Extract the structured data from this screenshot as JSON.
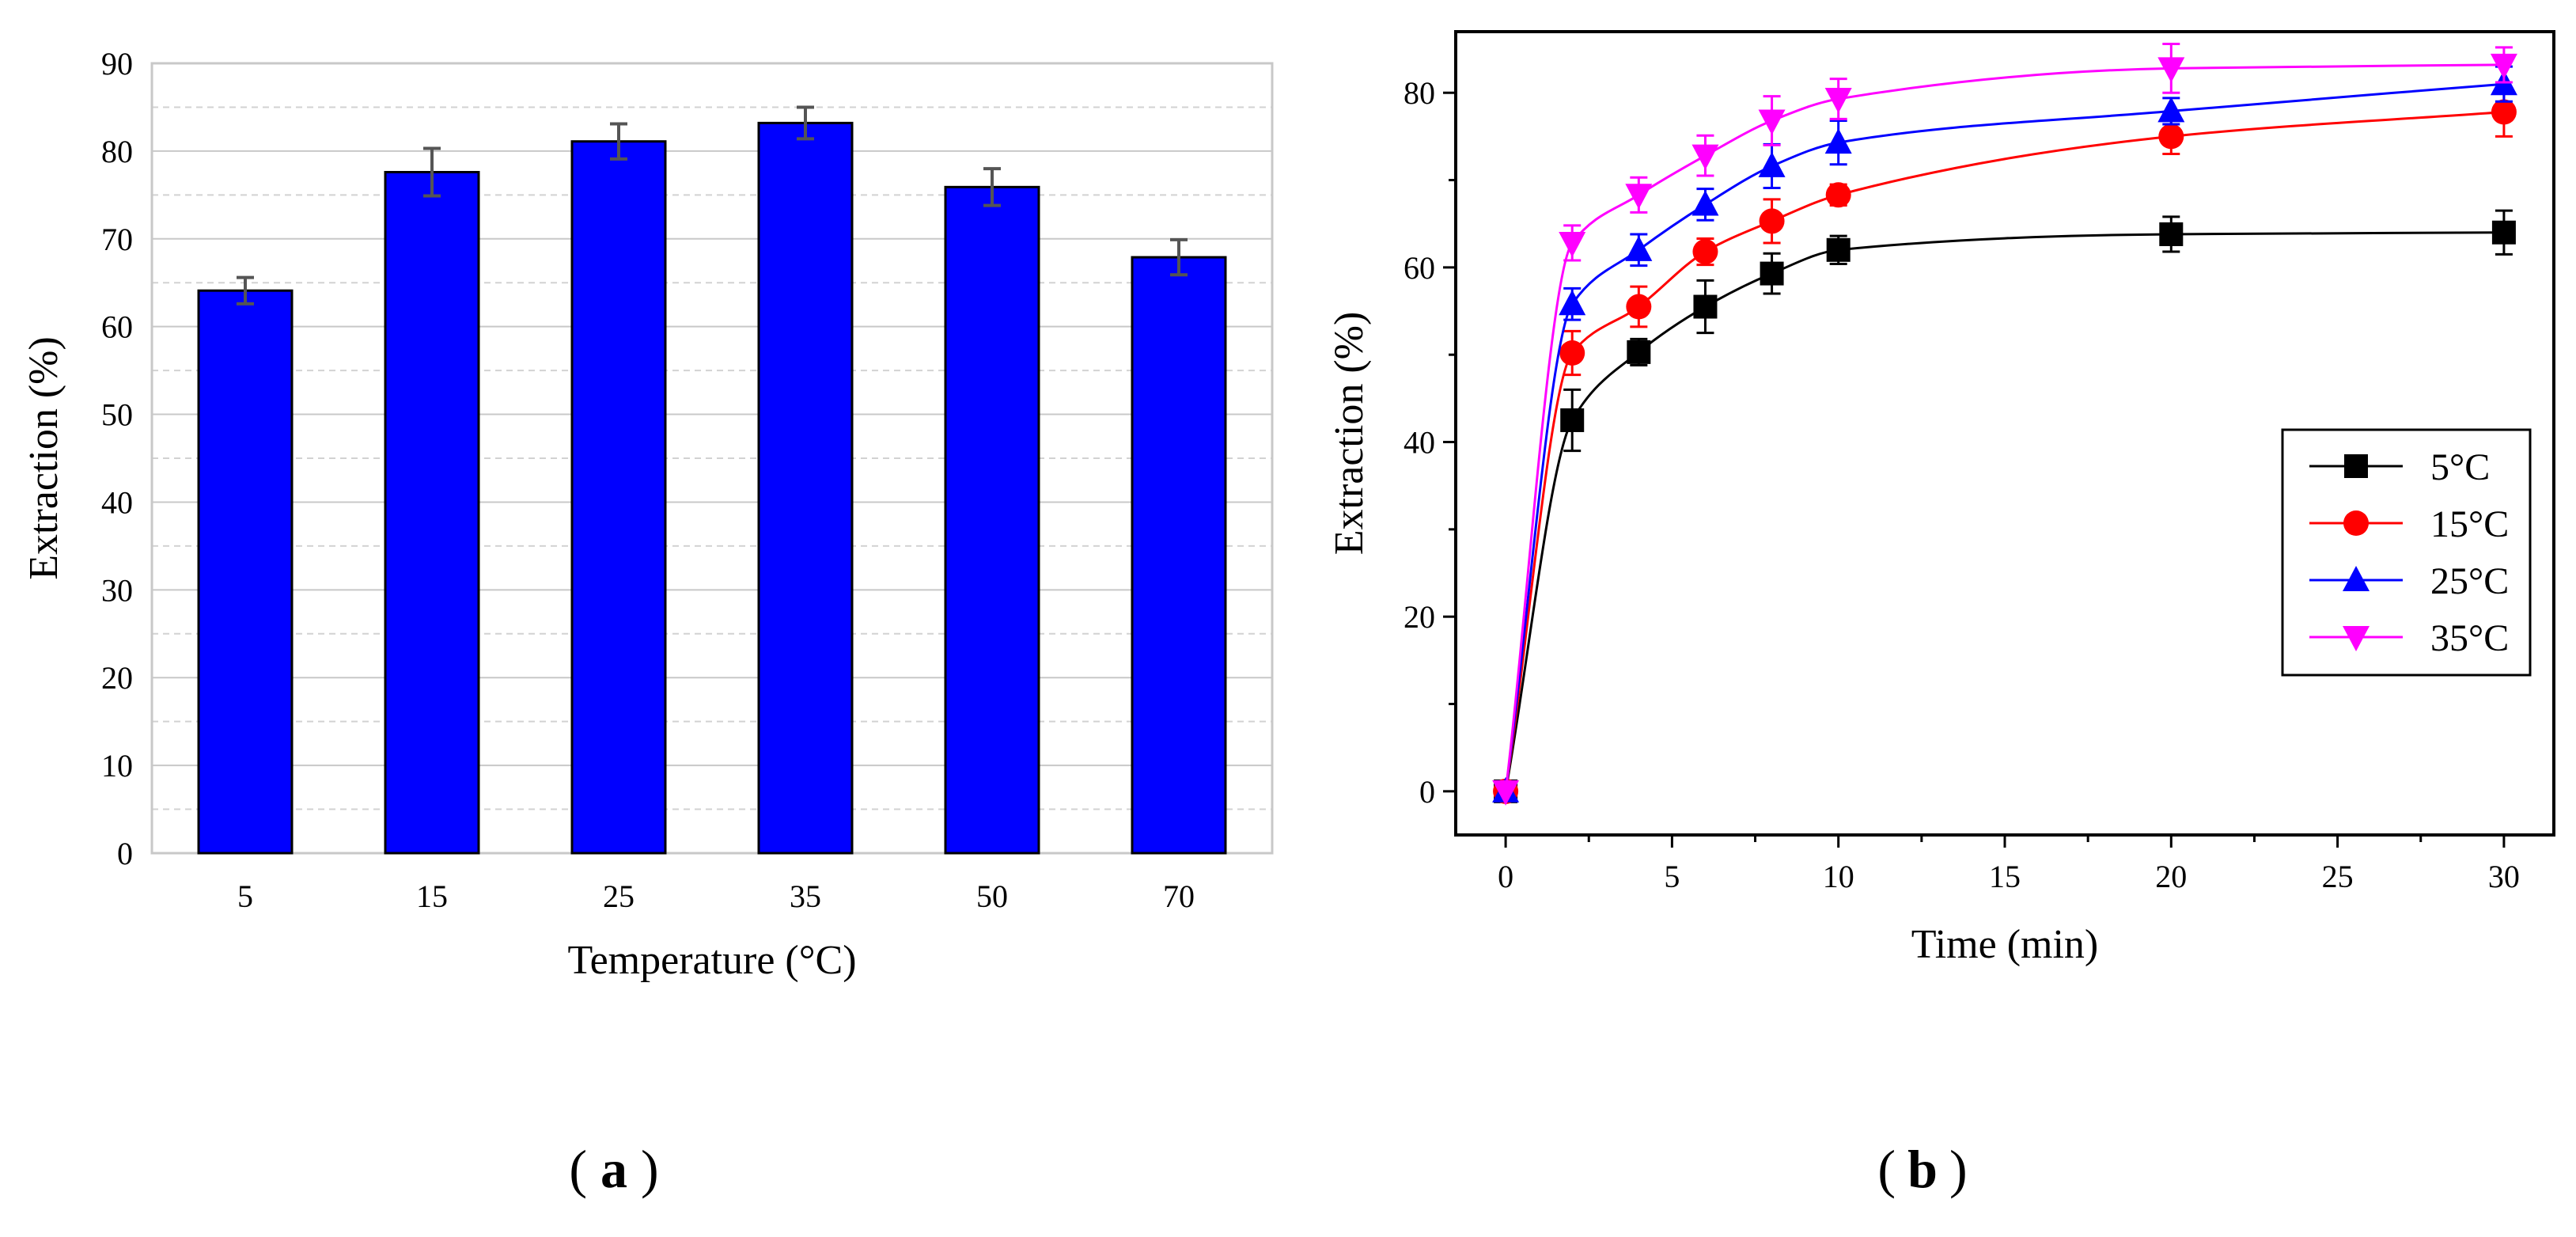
{
  "chart_data": [
    {
      "panel": "a",
      "type": "bar",
      "categories": [
        "5",
        "15",
        "25",
        "35",
        "50",
        "70"
      ],
      "values": [
        64.1,
        77.6,
        81.1,
        83.2,
        75.9,
        67.9
      ],
      "errors": [
        1.5,
        2.7,
        2.0,
        1.8,
        2.1,
        2.0
      ],
      "xlabel": "Temperature (°C)",
      "ylabel": "Extraction (%)",
      "ylim": [
        0,
        90
      ],
      "yticks": [
        0,
        10,
        20,
        30,
        40,
        50,
        60,
        70,
        80,
        90
      ],
      "grid": true,
      "bar_color": "#0000FF",
      "panel_label": "a"
    },
    {
      "panel": "b",
      "type": "line",
      "xlabel": "Time (min)",
      "ylabel": "Extraction (%)",
      "xlim": [
        -1.5,
        31.5
      ],
      "ylim": [
        -5,
        87
      ],
      "xticks": [
        0,
        5,
        10,
        15,
        20,
        25,
        30
      ],
      "yticks": [
        0,
        20,
        40,
        60,
        80
      ],
      "x": [
        0,
        2,
        4,
        6,
        8,
        10,
        20,
        30
      ],
      "legend_position": "right",
      "series": [
        {
          "name": "5°C",
          "color": "#000000",
          "marker": "square",
          "values": [
            0,
            42.5,
            50.3,
            55.5,
            59.3,
            62.0,
            63.8,
            64.0
          ],
          "errors": [
            0,
            3.5,
            1.5,
            3.0,
            2.3,
            1.6,
            2.0,
            2.5
          ]
        },
        {
          "name": "15°C",
          "color": "#FF0000",
          "marker": "circle",
          "values": [
            0,
            50.2,
            55.5,
            61.8,
            65.3,
            68.3,
            75.0,
            77.8
          ],
          "errors": [
            0,
            2.5,
            2.3,
            1.5,
            2.5,
            1.2,
            2.0,
            2.8
          ]
        },
        {
          "name": "25°C",
          "color": "#0000FF",
          "marker": "triangle-up",
          "values": [
            0,
            55.8,
            62.0,
            67.2,
            71.6,
            74.3,
            77.9,
            81.0
          ],
          "errors": [
            0,
            1.8,
            1.8,
            1.8,
            2.5,
            2.5,
            1.5,
            2.0
          ]
        },
        {
          "name": "35°C",
          "color": "#FF00FF",
          "marker": "triangle-down",
          "values": [
            0,
            62.8,
            68.3,
            72.8,
            76.8,
            79.3,
            82.8,
            83.2
          ],
          "errors": [
            0,
            2.0,
            2.0,
            2.3,
            2.8,
            2.3,
            2.8,
            2.0
          ]
        }
      ],
      "panel_label": "b"
    }
  ]
}
